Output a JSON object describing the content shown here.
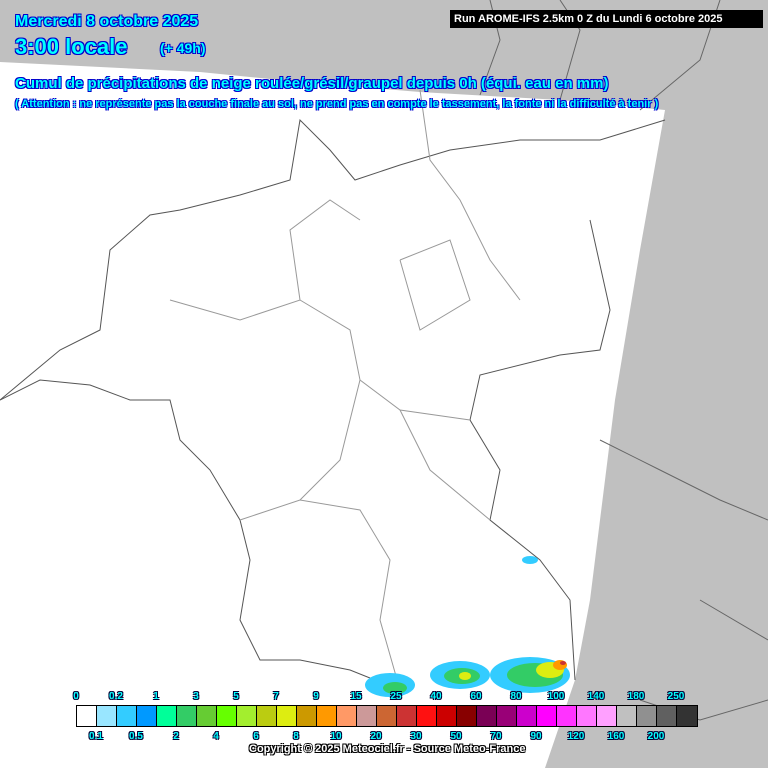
{
  "header": {
    "date": "Mercredi 8 octobre 2025",
    "hour": "3:00 locale",
    "offset": "(+ 49h)",
    "run": "Run AROME-IFS 2.5km 0 Z du Lundi 6 octobre 2025",
    "title": "Cumul de précipitations de neige roulée/grésil/graupel depuis 0h (équi. eau en mm)",
    "warning": "( Attention : ne représente pas la couche finale au sol, ne prend pas en compte le tassement, la fonte ni la difficulté à tenir )"
  },
  "legend": {
    "labels": [
      "0",
      "0.1",
      "0.2",
      "0.5",
      "1",
      "2",
      "3",
      "4",
      "5",
      "6",
      "7",
      "8",
      "9",
      "10",
      "15",
      "20",
      "25",
      "30",
      "40",
      "50",
      "60",
      "70",
      "80",
      "90",
      "100",
      "120",
      "140",
      "160",
      "180",
      "200",
      "250"
    ],
    "colors": [
      "#ffffff",
      "#99e6ff",
      "#33ccff",
      "#0099ff",
      "#00ff99",
      "#33cc66",
      "#66cc33",
      "#66ff00",
      "#a3ee2e",
      "#bbcc11",
      "#dded11",
      "#cc9900",
      "#ff9900",
      "#ff9966",
      "#cc9999",
      "#cc6633",
      "#cc3333",
      "#ff1111",
      "#cc0000",
      "#880000",
      "#7a0055",
      "#990077",
      "#cc00cc",
      "#ff00ff",
      "#ff33ff",
      "#ff77ff",
      "#ffa0ff",
      "#c0c0c0",
      "#909090",
      "#606060",
      "#333333"
    ]
  },
  "footer": {
    "copyright": "Copyright © 2025 Meteociel.fr - Source Meteo-France"
  },
  "colors": {
    "outside_domain": "#c0c0c0",
    "text": "#00ffff",
    "borders": "#555555"
  }
}
